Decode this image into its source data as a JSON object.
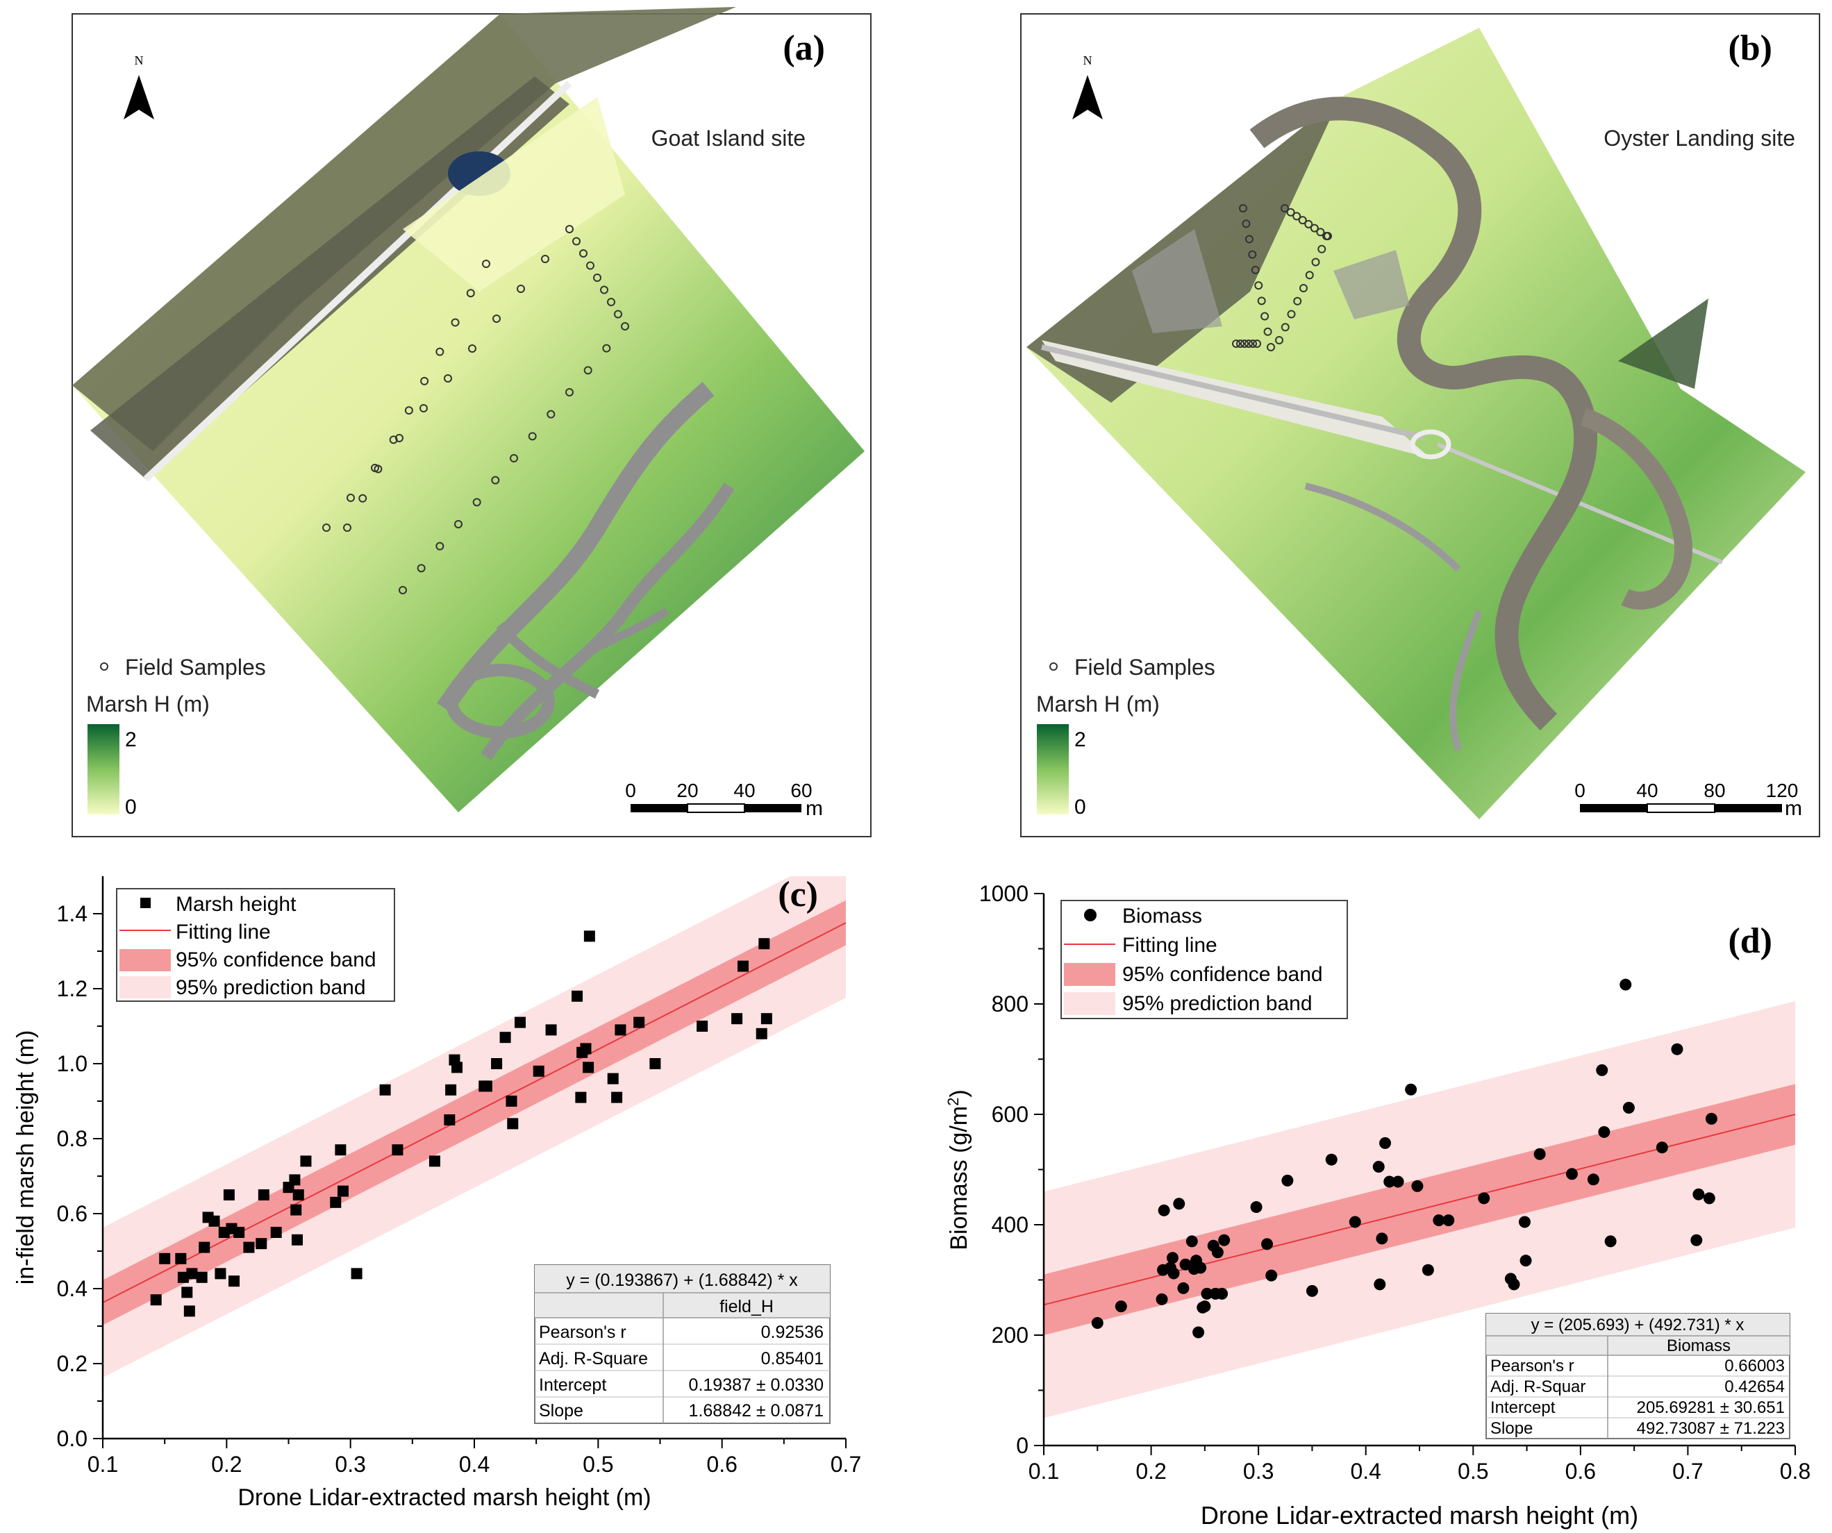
{
  "maps": [
    {
      "panel_label": "(a)",
      "site": "Goat Island site",
      "north": "N",
      "legend_samples": "Field Samples",
      "legend_title": "Marsh H (m)",
      "colorbar_max": "2",
      "colorbar_min": "0",
      "scale_ticks": [
        "0",
        "20",
        "40",
        "60"
      ],
      "scale_unit": "m",
      "colors": {
        "low": "#f5fac0",
        "mid": "#7fc05a",
        "high": "#0b6a35",
        "channel": "#8f8f8f"
      }
    },
    {
      "panel_label": "(b)",
      "site": "Oyster Landing site",
      "north": "N",
      "legend_samples": "Field Samples",
      "legend_title": "Marsh H (m)",
      "colorbar_max": "2",
      "colorbar_min": "0",
      "scale_ticks": [
        "0",
        "40",
        "80",
        "120"
      ],
      "scale_unit": "m",
      "colors": {
        "low": "#f5fac0",
        "mid": "#7fc05a",
        "high": "#0b6a35",
        "channel": "#8f8f8f"
      }
    }
  ],
  "chart_data": [
    {
      "panel_label": "(c)",
      "type": "scatter",
      "xlabel": "Drone Lidar-extracted marsh height (m)",
      "ylabel": "in-field marsh height (m)",
      "xlim": [
        0.1,
        0.7
      ],
      "ylim": [
        0.0,
        1.5
      ],
      "xticks": [
        "0.1",
        "0.2",
        "0.3",
        "0.4",
        "0.5",
        "0.6",
        "0.7"
      ],
      "yticks": [
        "0.0",
        "0.2",
        "0.4",
        "0.6",
        "0.8",
        "1.0",
        "1.2",
        "1.4"
      ],
      "legend": [
        "Marsh height",
        "Fitting line",
        "95% confidence band",
        "95% prediction band"
      ],
      "fit": {
        "intercept": 0.193867,
        "slope": 1.68842,
        "conf_halfwidth": 0.06,
        "pred_halfwidth": 0.2
      },
      "marker_color": "#000000",
      "band_colors": {
        "line": "#e8383d",
        "confidence": "#f59a9c",
        "prediction": "#fde2e3"
      },
      "stats_table": {
        "equation": "y = (0.193867) + (1.68842) * x",
        "column": "field_H",
        "rows": [
          {
            "label": "Pearson's r",
            "value": "0.92536"
          },
          {
            "label": "Adj. R-Square",
            "value": "0.85401"
          },
          {
            "label": "Intercept",
            "value": "0.19387 ± 0.0330"
          },
          {
            "label": "Slope",
            "value": "1.68842 ± 0.0871"
          }
        ]
      },
      "points": [
        [
          0.143,
          0.37
        ],
        [
          0.15,
          0.48
        ],
        [
          0.163,
          0.48
        ],
        [
          0.165,
          0.43
        ],
        [
          0.168,
          0.39
        ],
        [
          0.17,
          0.34
        ],
        [
          0.172,
          0.44
        ],
        [
          0.18,
          0.43
        ],
        [
          0.182,
          0.51
        ],
        [
          0.185,
          0.59
        ],
        [
          0.19,
          0.58
        ],
        [
          0.195,
          0.44
        ],
        [
          0.198,
          0.55
        ],
        [
          0.202,
          0.65
        ],
        [
          0.204,
          0.56
        ],
        [
          0.206,
          0.42
        ],
        [
          0.21,
          0.55
        ],
        [
          0.218,
          0.51
        ],
        [
          0.228,
          0.52
        ],
        [
          0.23,
          0.65
        ],
        [
          0.24,
          0.55
        ],
        [
          0.25,
          0.67
        ],
        [
          0.255,
          0.69
        ],
        [
          0.256,
          0.61
        ],
        [
          0.257,
          0.53
        ],
        [
          0.258,
          0.65
        ],
        [
          0.264,
          0.74
        ],
        [
          0.288,
          0.63
        ],
        [
          0.292,
          0.77
        ],
        [
          0.294,
          0.66
        ],
        [
          0.305,
          0.44
        ],
        [
          0.328,
          0.93
        ],
        [
          0.338,
          0.77
        ],
        [
          0.368,
          0.74
        ],
        [
          0.38,
          0.85
        ],
        [
          0.381,
          0.93
        ],
        [
          0.384,
          1.01
        ],
        [
          0.386,
          0.99
        ],
        [
          0.408,
          0.94
        ],
        [
          0.41,
          0.94
        ],
        [
          0.418,
          1.0
        ],
        [
          0.425,
          1.07
        ],
        [
          0.43,
          0.9
        ],
        [
          0.431,
          0.84
        ],
        [
          0.437,
          1.11
        ],
        [
          0.452,
          0.98
        ],
        [
          0.462,
          1.09
        ],
        [
          0.483,
          1.18
        ],
        [
          0.486,
          0.91
        ],
        [
          0.487,
          1.03
        ],
        [
          0.49,
          1.04
        ],
        [
          0.492,
          0.99
        ],
        [
          0.493,
          1.34
        ],
        [
          0.512,
          0.96
        ],
        [
          0.515,
          0.91
        ],
        [
          0.518,
          1.09
        ],
        [
          0.533,
          1.11
        ],
        [
          0.546,
          1.0
        ],
        [
          0.584,
          1.1
        ],
        [
          0.612,
          1.12
        ],
        [
          0.617,
          1.26
        ],
        [
          0.632,
          1.08
        ],
        [
          0.634,
          1.32
        ],
        [
          0.636,
          1.12
        ]
      ]
    },
    {
      "panel_label": "(d)",
      "type": "scatter",
      "xlabel": "Drone Lidar-extracted marsh height (m)",
      "ylabel": "Biomass (g/m",
      "ylabel_sup": "2",
      "ylabel_tail": ")",
      "xlim": [
        0.1,
        0.8
      ],
      "ylim": [
        0,
        1000
      ],
      "xticks": [
        "0.1",
        "0.2",
        "0.3",
        "0.4",
        "0.5",
        "0.6",
        "0.7",
        "0.8"
      ],
      "yticks": [
        "0",
        "200",
        "400",
        "600",
        "800",
        "1000"
      ],
      "legend": [
        "Biomass",
        "Fitting line",
        "95% confidence band",
        "95% prediction band"
      ],
      "fit": {
        "intercept": 205.693,
        "slope": 492.731,
        "conf_halfwidth": 55,
        "pred_halfwidth": 205
      },
      "marker_color": "#000000",
      "band_colors": {
        "line": "#e8383d",
        "confidence": "#f59a9c",
        "prediction": "#fde2e3"
      },
      "stats_table": {
        "equation": "y = (205.693) + (492.731) * x",
        "column": "Biomass",
        "rows": [
          {
            "label": "Pearson's r",
            "value": "0.66003"
          },
          {
            "label": "Adj. R-Squar",
            "value": "0.42654"
          },
          {
            "label": "Intercept",
            "value": "205.69281 ± 30.651"
          },
          {
            "label": "Slope",
            "value": "492.73087 ± 71.223"
          }
        ]
      },
      "points": [
        [
          0.15,
          222
        ],
        [
          0.172,
          252
        ],
        [
          0.21,
          265
        ],
        [
          0.211,
          318
        ],
        [
          0.212,
          426
        ],
        [
          0.218,
          322
        ],
        [
          0.22,
          340
        ],
        [
          0.221,
          312
        ],
        [
          0.226,
          438
        ],
        [
          0.23,
          285
        ],
        [
          0.232,
          328
        ],
        [
          0.238,
          370
        ],
        [
          0.24,
          320
        ],
        [
          0.242,
          335
        ],
        [
          0.244,
          205
        ],
        [
          0.246,
          322
        ],
        [
          0.248,
          250
        ],
        [
          0.25,
          252
        ],
        [
          0.252,
          275
        ],
        [
          0.258,
          362
        ],
        [
          0.26,
          275
        ],
        [
          0.262,
          350
        ],
        [
          0.266,
          275
        ],
        [
          0.268,
          372
        ],
        [
          0.298,
          432
        ],
        [
          0.308,
          365
        ],
        [
          0.312,
          308
        ],
        [
          0.327,
          480
        ],
        [
          0.35,
          280
        ],
        [
          0.368,
          518
        ],
        [
          0.39,
          405
        ],
        [
          0.412,
          505
        ],
        [
          0.413,
          292
        ],
        [
          0.415,
          375
        ],
        [
          0.418,
          548
        ],
        [
          0.422,
          478
        ],
        [
          0.43,
          478
        ],
        [
          0.442,
          645
        ],
        [
          0.448,
          470
        ],
        [
          0.458,
          318
        ],
        [
          0.468,
          408
        ],
        [
          0.477,
          408
        ],
        [
          0.51,
          448
        ],
        [
          0.535,
          302
        ],
        [
          0.538,
          292
        ],
        [
          0.548,
          405
        ],
        [
          0.549,
          335
        ],
        [
          0.562,
          528
        ],
        [
          0.592,
          492
        ],
        [
          0.612,
          482
        ],
        [
          0.62,
          680
        ],
        [
          0.622,
          568
        ],
        [
          0.628,
          370
        ],
        [
          0.642,
          835
        ],
        [
          0.645,
          612
        ],
        [
          0.676,
          540
        ],
        [
          0.69,
          718
        ],
        [
          0.708,
          372
        ],
        [
          0.71,
          455
        ],
        [
          0.72,
          448
        ],
        [
          0.722,
          592
        ]
      ]
    }
  ]
}
